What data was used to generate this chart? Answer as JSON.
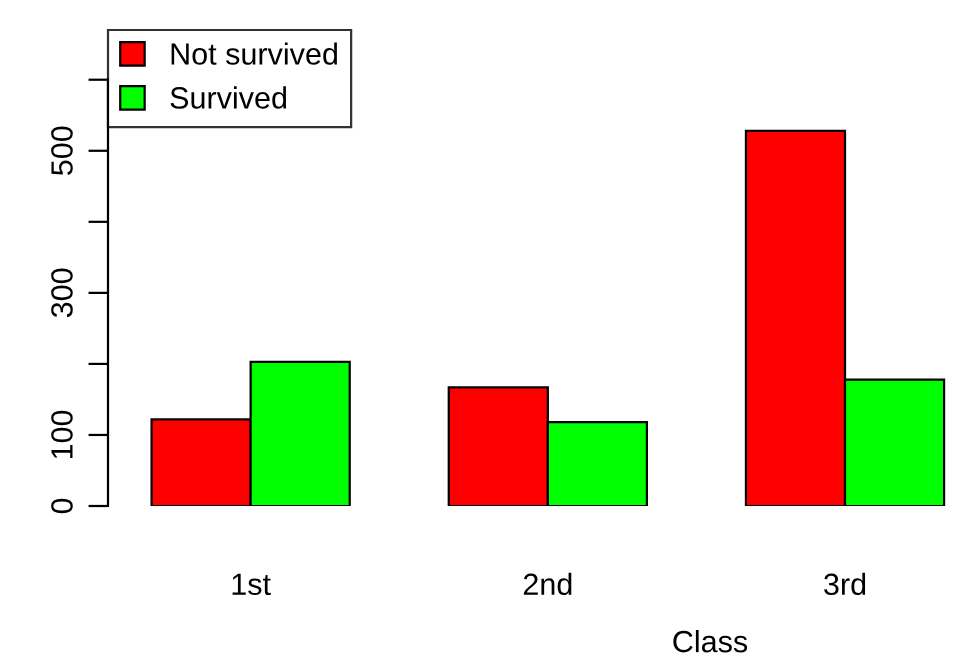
{
  "chart_data": {
    "type": "bar",
    "xlabel": "Class",
    "categories": [
      "1st",
      "2nd",
      "3rd"
    ],
    "series": [
      {
        "name": "Not survived",
        "color": "#ff0000",
        "values": [
          122,
          167,
          528
        ]
      },
      {
        "name": "Survived",
        "color": "#00ff00",
        "values": [
          203,
          118,
          178
        ]
      }
    ],
    "ylim": [
      0,
      670
    ],
    "yticks": [
      0,
      100,
      {
        "value": 200,
        "label": null
      },
      300,
      {
        "value": 400,
        "label": null
      },
      500,
      {
        "value": 600,
        "label": null
      }
    ],
    "grid": false,
    "legend": "top left"
  }
}
